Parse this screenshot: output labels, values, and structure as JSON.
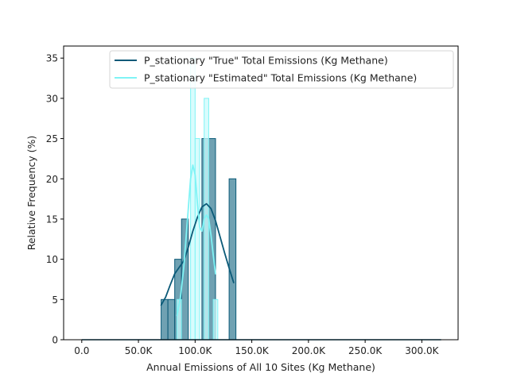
{
  "chart_data": {
    "type": "histogram",
    "xlabel": "Annual Emissions of All 10 Sites (Kg Methane)",
    "ylabel": "Relative Frequency (%)",
    "xlim": [
      -16000,
      332000
    ],
    "ylim": [
      0,
      36.5
    ],
    "x_ticks": [
      {
        "value": 0,
        "label": "0.0"
      },
      {
        "value": 50000,
        "label": "50.0K"
      },
      {
        "value": 100000,
        "label": "100.0K"
      },
      {
        "value": 150000,
        "label": "150.0K"
      },
      {
        "value": 200000,
        "label": "200.0K"
      },
      {
        "value": 250000,
        "label": "250.0K"
      },
      {
        "value": 300000,
        "label": "300.0K"
      }
    ],
    "y_ticks": [
      0,
      5,
      10,
      15,
      20,
      25,
      30,
      35
    ],
    "grid": false,
    "legend_position": "top-right",
    "baseline_line": {
      "x_start": 0,
      "x_end": 317000
    },
    "series": [
      {
        "name": "P_stationary \"True\" Total Emissions (Kg Methane)",
        "color": "#0b5a78",
        "bar_fill": "#5f97aa",
        "bins": [
          {
            "x0": 70000,
            "x1": 76000,
            "value": 5
          },
          {
            "x0": 76000,
            "x1": 82000,
            "value": 5
          },
          {
            "x0": 82000,
            "x1": 88000,
            "value": 10
          },
          {
            "x0": 88000,
            "x1": 94000,
            "value": 15
          },
          {
            "x0": 94000,
            "x1": 100000,
            "value": 0
          },
          {
            "x0": 100000,
            "x1": 106000,
            "value": 0
          },
          {
            "x0": 106000,
            "x1": 112000,
            "value": 25
          },
          {
            "x0": 112000,
            "x1": 118000,
            "value": 25
          },
          {
            "x0": 118000,
            "x1": 124000,
            "value": 0
          },
          {
            "x0": 124000,
            "x1": 130000,
            "value": 0
          },
          {
            "x0": 130000,
            "x1": 136000,
            "value": 20
          }
        ],
        "kde": {
          "x": [
            70000,
            74000,
            78000,
            82000,
            86000,
            90000,
            94000,
            98000,
            102000,
            106000,
            110000,
            114000,
            118000,
            122000,
            126000,
            130000,
            134000
          ],
          "y": [
            4.3,
            5.3,
            6.8,
            8.2,
            9.0,
            9.8,
            11.5,
            13.5,
            15.2,
            16.5,
            16.9,
            16.3,
            14.8,
            12.8,
            10.8,
            8.9,
            7.1
          ]
        }
      },
      {
        "name": "P_stationary \"Estimated\" Total Emissions (Kg Methane)",
        "color": "#7ff3f5",
        "bar_fill": "#cbfbfc",
        "bins": [
          {
            "x0": 84000,
            "x1": 88000,
            "value": 5
          },
          {
            "x0": 88000,
            "x1": 92000,
            "value": 0
          },
          {
            "x0": 92000,
            "x1": 96000,
            "value": 0
          },
          {
            "x0": 96000,
            "x1": 100000,
            "value": 35
          },
          {
            "x0": 100000,
            "x1": 104000,
            "value": 25
          },
          {
            "x0": 104000,
            "x1": 108000,
            "value": 0
          },
          {
            "x0": 108000,
            "x1": 112000,
            "value": 30
          },
          {
            "x0": 112000,
            "x1": 116000,
            "value": 0
          },
          {
            "x0": 116000,
            "x1": 120000,
            "value": 5
          }
        ],
        "kde": {
          "x": [
            84000,
            87000,
            90000,
            93000,
            96000,
            98000,
            100000,
            102000,
            104000,
            106000,
            108000,
            110000,
            112000,
            114000,
            116000,
            118000
          ],
          "y": [
            3.0,
            5.2,
            9.0,
            14.5,
            20.0,
            21.7,
            20.5,
            17.0,
            14.0,
            13.5,
            15.0,
            15.5,
            15.0,
            13.0,
            10.5,
            8.2
          ]
        }
      }
    ]
  }
}
